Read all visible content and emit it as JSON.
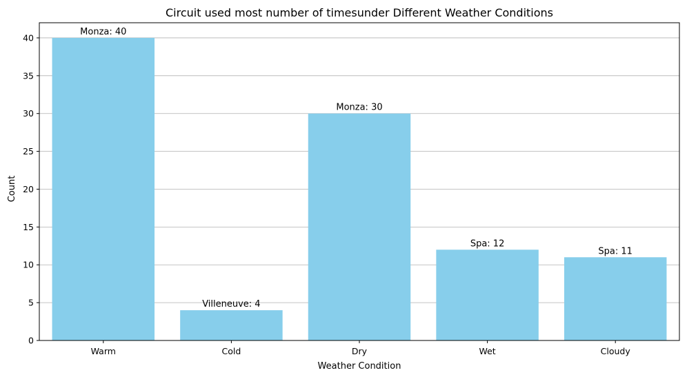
{
  "chart_data": {
    "type": "bar",
    "title": "Circuit used most number of timesunder Different Weather Conditions",
    "xlabel": "Weather Condition",
    "ylabel": "Count",
    "categories": [
      "Warm",
      "Cold",
      "Dry",
      "Wet",
      "Cloudy"
    ],
    "values": [
      40,
      4,
      30,
      12,
      11
    ],
    "bar_labels": [
      "Monza: 40",
      "Villeneuve: 4",
      "Monza: 30",
      "Spa: 12",
      "Spa: 11"
    ],
    "ylim": [
      0,
      42
    ],
    "yticks": [
      0,
      5,
      10,
      15,
      20,
      25,
      30,
      35,
      40
    ],
    "grid": "y",
    "bar_color": "#87ceeb"
  }
}
